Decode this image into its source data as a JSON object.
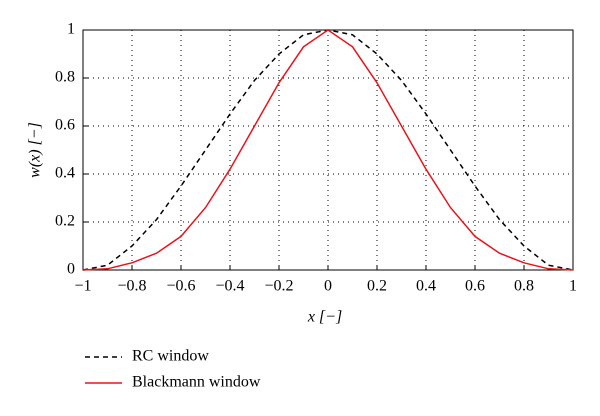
{
  "chart_data": {
    "type": "line",
    "x_label": "x [−]",
    "y_label": "w(x) [−]",
    "x": [
      -1,
      -0.9,
      -0.8,
      -0.7,
      -0.6,
      -0.5,
      -0.4,
      -0.3,
      -0.2,
      -0.1,
      0,
      0.1,
      0.2,
      0.3,
      0.4,
      0.5,
      0.6,
      0.7,
      0.8,
      0.9,
      1
    ],
    "series": [
      {
        "name": "RC window",
        "color": "#000000",
        "dash": true,
        "values": [
          0,
          0.02,
          0.1,
          0.21,
          0.35,
          0.5,
          0.65,
          0.79,
          0.9,
          0.98,
          1,
          0.98,
          0.9,
          0.79,
          0.65,
          0.5,
          0.35,
          0.21,
          0.1,
          0.02,
          0
        ]
      },
      {
        "name": "Blackmann window",
        "color": "#e8141c",
        "dash": false,
        "values": [
          0,
          0.005,
          0.03,
          0.07,
          0.14,
          0.26,
          0.42,
          0.6,
          0.78,
          0.93,
          1,
          0.93,
          0.78,
          0.6,
          0.42,
          0.26,
          0.14,
          0.07,
          0.03,
          0.005,
          0
        ]
      }
    ],
    "xlim": [
      -1,
      1
    ],
    "xticks": [
      {
        "value": -1,
        "label": "−1"
      },
      {
        "value": -0.8,
        "label": "−0.8"
      },
      {
        "value": -0.6,
        "label": "−0.6"
      },
      {
        "value": -0.4,
        "label": "−0.4"
      },
      {
        "value": -0.2,
        "label": "−0.2"
      },
      0,
      0.2,
      0.4,
      0.6,
      0.8,
      1
    ],
    "ylim": [
      0,
      1
    ],
    "yticks": [
      0,
      0.2,
      0.4,
      0.6,
      0.8,
      1
    ],
    "grid": true
  }
}
